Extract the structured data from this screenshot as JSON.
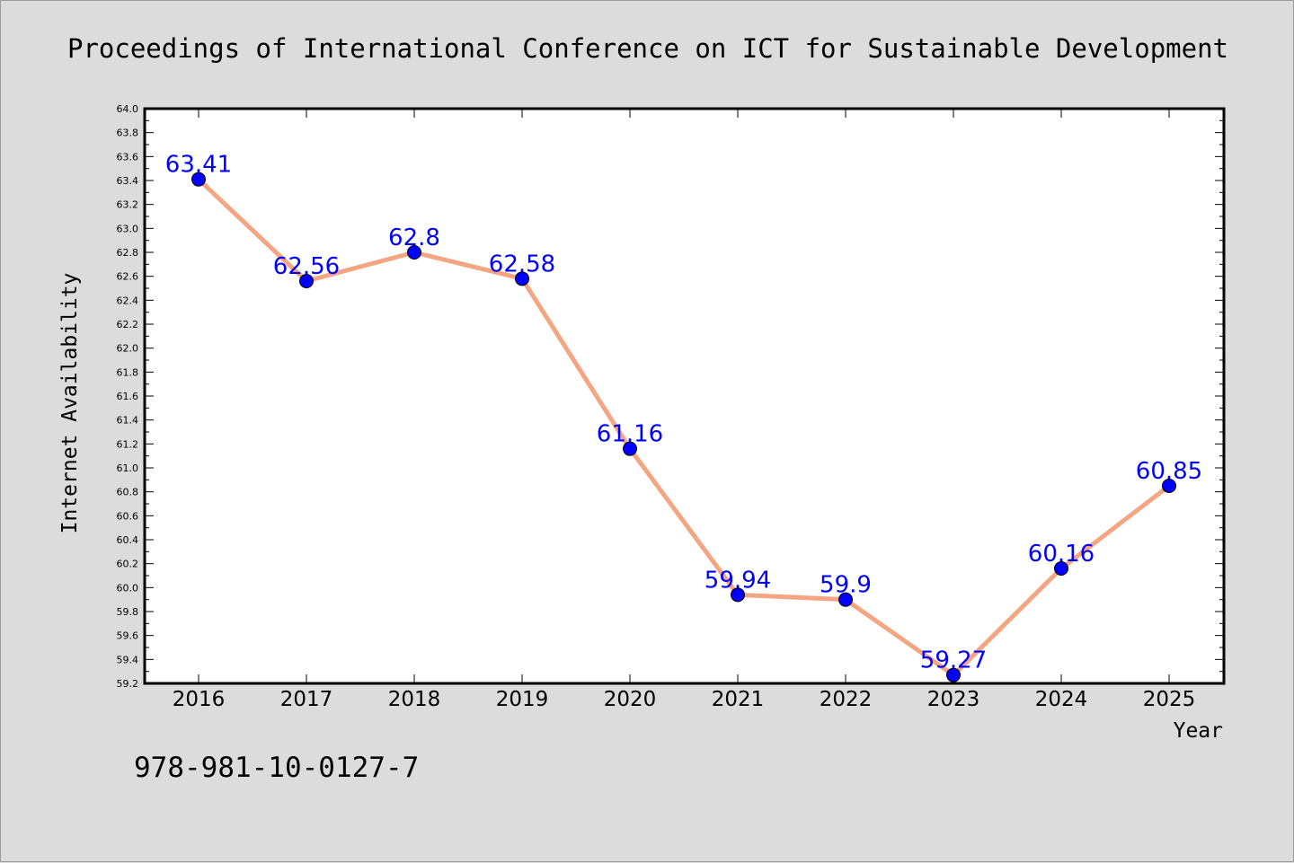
{
  "chart_data": {
    "type": "line",
    "title": "Proceedings of International Conference on ICT for Sustainable Development",
    "xlabel": "Year",
    "ylabel": "Internet Availability",
    "categories": [
      "2016",
      "2017",
      "2018",
      "2019",
      "2020",
      "2021",
      "2022",
      "2023",
      "2024",
      "2025"
    ],
    "series": [
      {
        "values": [
          63.41,
          62.56,
          62.8,
          62.58,
          61.16,
          59.94,
          59.9,
          59.27,
          60.16,
          60.85
        ],
        "labels": [
          "63.41",
          "62.56",
          "62.8",
          "62.58",
          "61.16",
          "59.94",
          "59.9",
          "59.27",
          "60.16",
          "60.85"
        ],
        "line_color": "#f4a582",
        "marker_color": "#0000ff"
      }
    ],
    "ylim": [
      59.2,
      64.0
    ],
    "yticks": [
      "59.2",
      "59.4",
      "59.6",
      "59.8",
      "60.0",
      "60.2",
      "60.4",
      "60.6",
      "60.8",
      "61.0",
      "61.2",
      "61.4",
      "61.6",
      "61.8",
      "62.0",
      "62.2",
      "62.4",
      "62.6",
      "62.8",
      "63.0",
      "63.2",
      "63.4",
      "63.6",
      "63.8",
      "64.0"
    ],
    "grid": false,
    "legend": "none",
    "label_color": "#0000ff"
  },
  "footer": {
    "isbn": "978-981-10-0127-7"
  }
}
